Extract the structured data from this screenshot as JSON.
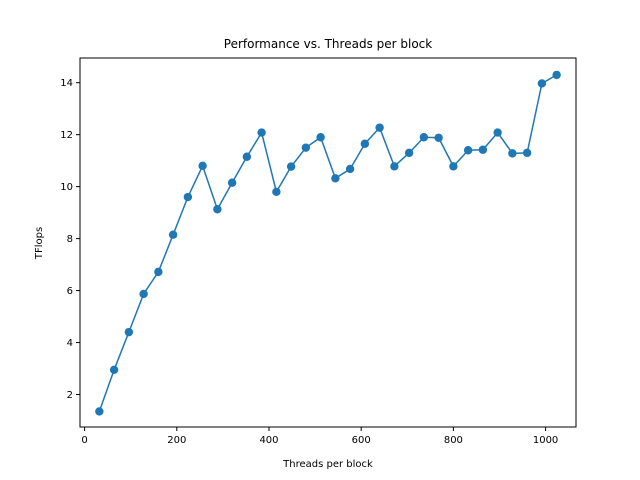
{
  "chart_data": {
    "type": "line",
    "title": "Performance vs. Threads per block",
    "xlabel": "Threads per block",
    "ylabel": "TFlops",
    "xlim": [
      -10,
      1066
    ],
    "ylim": [
      0.75,
      14.95
    ],
    "xticks": [
      0,
      200,
      400,
      600,
      800,
      1000
    ],
    "yticks": [
      2,
      4,
      6,
      8,
      10,
      12,
      14
    ],
    "grid": false,
    "legend": "none",
    "markers": true,
    "color": "#1f77b4",
    "series": [
      {
        "x": [
          32,
          64,
          96,
          128,
          160,
          192,
          224,
          256,
          288,
          320,
          352,
          384,
          416,
          448,
          480,
          512,
          544,
          576,
          608,
          640,
          672,
          704,
          736,
          768,
          800,
          832,
          864,
          896,
          928,
          960,
          992,
          1024
        ],
        "values": [
          1.35,
          2.95,
          4.4,
          5.87,
          6.72,
          8.15,
          9.6,
          10.8,
          9.13,
          10.15,
          11.15,
          12.08,
          9.8,
          10.77,
          11.5,
          11.9,
          10.32,
          10.68,
          11.65,
          12.27,
          10.78,
          11.3,
          11.9,
          11.88,
          10.78,
          11.4,
          11.42,
          12.08,
          11.28,
          11.3,
          13.97,
          14.3
        ]
      }
    ]
  }
}
